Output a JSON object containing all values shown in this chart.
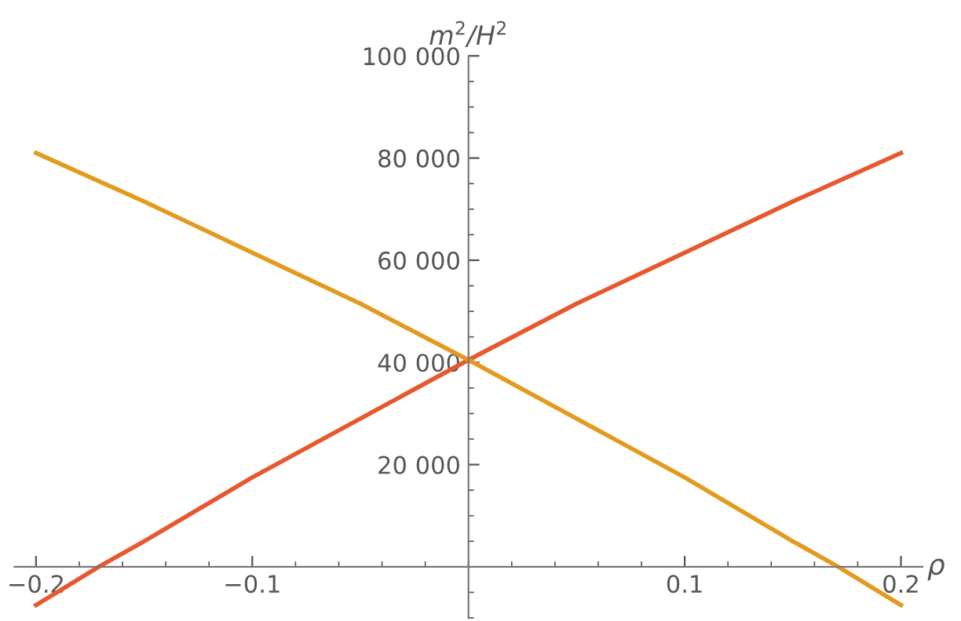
{
  "chart_data": {
    "type": "line",
    "xlabel": "ρ",
    "ylabel": "m$^{2}$/H$^{2}$",
    "series": [
      {
        "color": "#e8582f",
        "x": [
          -0.2,
          -0.171,
          -0.15,
          -0.1,
          -0.05,
          0,
          0.05,
          0.1,
          0.15,
          0.2
        ],
        "values": [
          -7500,
          0,
          5000,
          17500,
          29000,
          40500,
          51500,
          61500,
          71500,
          81000
        ]
      },
      {
        "color": "#e39a1e",
        "x": [
          -0.2,
          -0.15,
          -0.1,
          -0.05,
          0,
          0.05,
          0.1,
          0.15,
          0.171,
          0.2
        ],
        "values": [
          81000,
          71500,
          61500,
          51500,
          40500,
          29000,
          17500,
          5000,
          0,
          -7500
        ]
      }
    ],
    "xlim": [
      -0.21,
      0.21
    ],
    "ylim": [
      -10000,
      100000
    ],
    "xticks": [
      {
        "value": -0.2,
        "label": "−0.2"
      },
      {
        "value": -0.1,
        "label": "−0.1"
      },
      {
        "value": 0.1,
        "label": "0.1"
      },
      {
        "value": 0.2,
        "label": "0.2"
      }
    ],
    "yticks": [
      {
        "value": 20000,
        "label": "20 000"
      },
      {
        "value": 40000,
        "label": "40 000"
      },
      {
        "value": 60000,
        "label": "60 000"
      },
      {
        "value": 80000,
        "label": "80 000"
      },
      {
        "value": 100000,
        "label": "100 000"
      }
    ],
    "grid": false,
    "legend": false,
    "marker": "none",
    "line_style": "solid"
  }
}
